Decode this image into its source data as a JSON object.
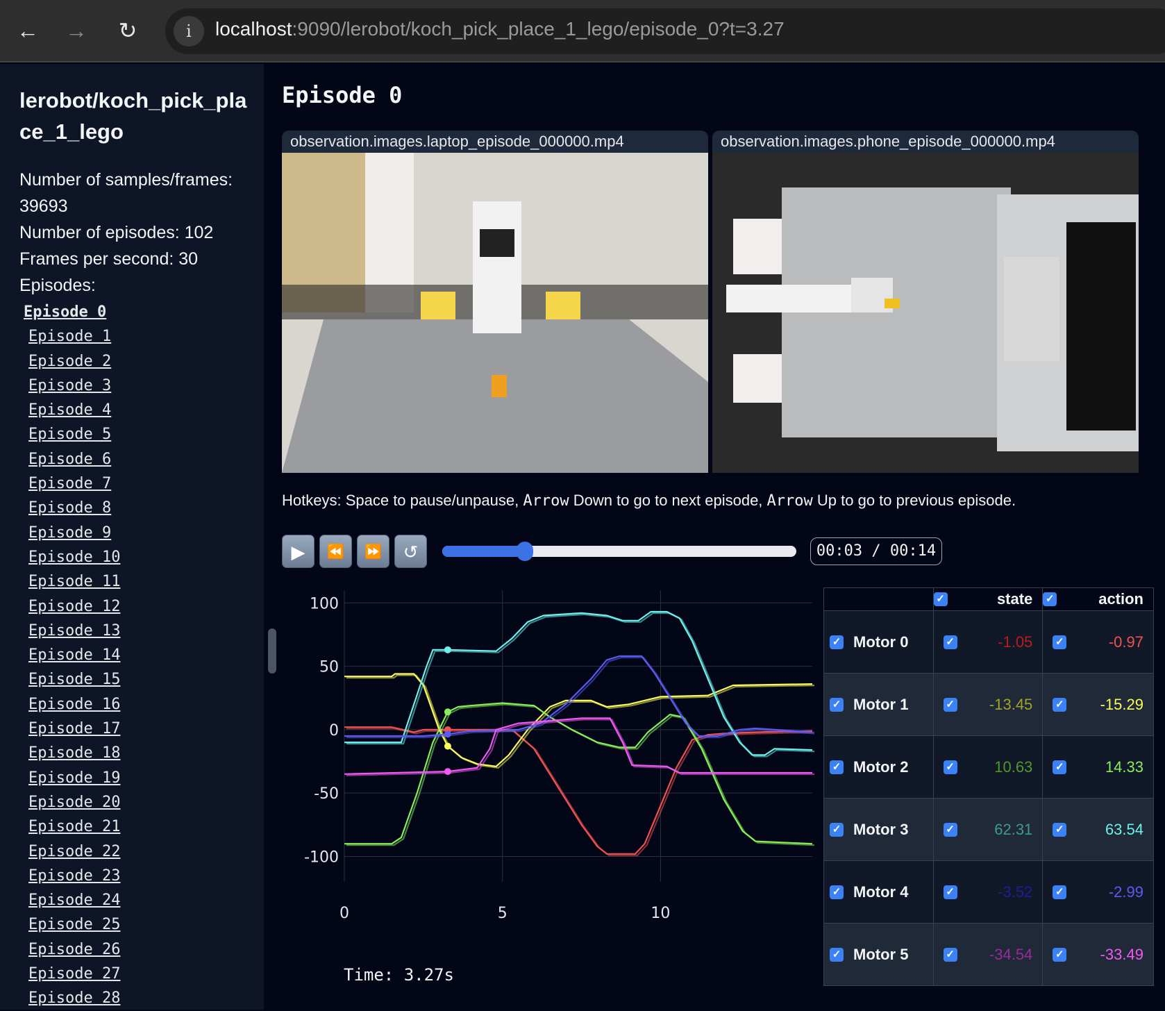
{
  "browser": {
    "url_host": "localhost",
    "url_rest": ":9090/lerobot/koch_pick_place_1_lego/episode_0?t=3.27",
    "back_icon": "←",
    "forward_icon": "→",
    "reload_icon": "↻",
    "info_icon": "i"
  },
  "sidebar": {
    "title": "lerobot/koch_pick_place_1_lego",
    "stats": [
      "Number of samples/frames: 39693",
      "Number of episodes: 102",
      "Frames per second: 30",
      "Episodes:"
    ],
    "episodes": [
      "Episode 0",
      "Episode 1",
      "Episode 2",
      "Episode 3",
      "Episode 4",
      "Episode 5",
      "Episode 6",
      "Episode 7",
      "Episode 8",
      "Episode 9",
      "Episode 10",
      "Episode 11",
      "Episode 12",
      "Episode 13",
      "Episode 14",
      "Episode 15",
      "Episode 16",
      "Episode 17",
      "Episode 18",
      "Episode 19",
      "Episode 20",
      "Episode 21",
      "Episode 22",
      "Episode 23",
      "Episode 24",
      "Episode 25",
      "Episode 26",
      "Episode 27",
      "Episode 28"
    ]
  },
  "main": {
    "title": "Episode 0",
    "videos": [
      "observation.images.laptop_episode_000000.mp4",
      "observation.images.phone_episode_000000.mp4"
    ],
    "hotkeys": {
      "a": "Hotkeys: Space to pause/unpause, ",
      "k1": "Arrow",
      "b": " Down to go to next episode, ",
      "k2": "Arrow",
      "c": " Up to go to previous episode."
    },
    "controls": {
      "play": "▶",
      "rewind": "⏪",
      "forward": "⏩",
      "loop": "↺",
      "progress_fraction": 0.234,
      "time": "00:03 / 00:14"
    },
    "time_label": "Time: 3.27s"
  },
  "table": {
    "headers": [
      "",
      "state",
      "action"
    ],
    "rows": [
      {
        "name": "Motor 0",
        "state": "-1.05",
        "action": "-0.97",
        "state_color": "#b91c1c",
        "action_color": "#f05252"
      },
      {
        "name": "Motor 1",
        "state": "-13.45",
        "action": "-15.29",
        "state_color": "#a3a32a",
        "action_color": "#fafa5a"
      },
      {
        "name": "Motor 2",
        "state": "10.63",
        "action": "14.33",
        "state_color": "#4d9a2a",
        "action_color": "#86ef5a"
      },
      {
        "name": "Motor 3",
        "state": "62.31",
        "action": "63.54",
        "state_color": "#3f9a94",
        "action_color": "#6ef0ea"
      },
      {
        "name": "Motor 4",
        "state": "-3.52",
        "action": "-2.99",
        "state_color": "#1e1e9a",
        "action_color": "#5b5bf0"
      },
      {
        "name": "Motor 5",
        "state": "-34.54",
        "action": "-33.49",
        "state_color": "#9a2a9a",
        "action_color": "#f05af0"
      }
    ]
  },
  "chart_data": {
    "type": "line",
    "xlim": [
      0,
      14.8
    ],
    "ylim": [
      -120,
      110
    ],
    "xticks": [
      0,
      5,
      10
    ],
    "yticks": [
      100,
      50,
      0,
      -50,
      -100
    ],
    "grid": true,
    "cursor_x": 3.27,
    "series": [
      {
        "name": "Motor 0",
        "color": "#f05252",
        "points": [
          [
            0,
            2
          ],
          [
            1.5,
            2
          ],
          [
            2.2,
            -2
          ],
          [
            2.5,
            0
          ],
          [
            5.3,
            0
          ],
          [
            6,
            -15
          ],
          [
            7,
            -55
          ],
          [
            7.5,
            -75
          ],
          [
            8,
            -92
          ],
          [
            8.3,
            -98
          ],
          [
            9.2,
            -98
          ],
          [
            9.5,
            -90
          ],
          [
            10,
            -60
          ],
          [
            10.5,
            -30
          ],
          [
            11,
            -8
          ],
          [
            11.5,
            -4
          ],
          [
            12,
            -3
          ],
          [
            13,
            -2
          ],
          [
            14.8,
            -1
          ]
        ]
      },
      {
        "name": "Motor 1",
        "color": "#fafa5a",
        "points": [
          [
            0,
            42
          ],
          [
            1.5,
            42
          ],
          [
            1.6,
            44
          ],
          [
            2.2,
            44
          ],
          [
            2.5,
            35
          ],
          [
            3,
            0
          ],
          [
            3.27,
            -13
          ],
          [
            3.7,
            -22
          ],
          [
            4.2,
            -27
          ],
          [
            4.8,
            -29
          ],
          [
            5.2,
            -20
          ],
          [
            5.8,
            0
          ],
          [
            6.5,
            18
          ],
          [
            7,
            23
          ],
          [
            7.8,
            23
          ],
          [
            8.3,
            18
          ],
          [
            9,
            20
          ],
          [
            10,
            26
          ],
          [
            11.5,
            27
          ],
          [
            12.3,
            35
          ],
          [
            14.8,
            36
          ]
        ]
      },
      {
        "name": "Motor 2",
        "color": "#86ef5a",
        "points": [
          [
            0,
            -90
          ],
          [
            1.5,
            -90
          ],
          [
            1.8,
            -85
          ],
          [
            2.3,
            -50
          ],
          [
            2.8,
            -10
          ],
          [
            3.27,
            14
          ],
          [
            3.6,
            18
          ],
          [
            4,
            19
          ],
          [
            5,
            21
          ],
          [
            6,
            19
          ],
          [
            6.5,
            10
          ],
          [
            7.2,
            0
          ],
          [
            8,
            -10
          ],
          [
            8.7,
            -14
          ],
          [
            9.2,
            -14
          ],
          [
            9.6,
            -2
          ],
          [
            10.3,
            12
          ],
          [
            10.7,
            10
          ],
          [
            11.3,
            -15
          ],
          [
            12,
            -55
          ],
          [
            12.6,
            -80
          ],
          [
            13,
            -88
          ],
          [
            14.8,
            -90
          ]
        ]
      },
      {
        "name": "Motor 3",
        "color": "#6ef0ea",
        "points": [
          [
            0,
            -10
          ],
          [
            1.8,
            -10
          ],
          [
            2.2,
            20
          ],
          [
            2.6,
            50
          ],
          [
            2.8,
            63
          ],
          [
            3.27,
            63
          ],
          [
            4.8,
            62
          ],
          [
            5.3,
            72
          ],
          [
            5.8,
            85
          ],
          [
            6.3,
            90
          ],
          [
            7.5,
            92
          ],
          [
            8.3,
            90
          ],
          [
            8.8,
            86
          ],
          [
            9.3,
            86
          ],
          [
            9.7,
            93
          ],
          [
            10.2,
            93
          ],
          [
            10.6,
            88
          ],
          [
            11,
            70
          ],
          [
            11.5,
            40
          ],
          [
            12,
            10
          ],
          [
            12.5,
            -10
          ],
          [
            12.9,
            -20
          ],
          [
            13.3,
            -20
          ],
          [
            13.6,
            -15
          ],
          [
            14.8,
            -16
          ]
        ]
      },
      {
        "name": "Motor 4",
        "color": "#5b5bf0",
        "points": [
          [
            0,
            -5
          ],
          [
            2.5,
            -5
          ],
          [
            3.27,
            -3.5
          ],
          [
            4,
            -1
          ],
          [
            5.5,
            0
          ],
          [
            6.2,
            5
          ],
          [
            7,
            20
          ],
          [
            7.8,
            40
          ],
          [
            8.3,
            55
          ],
          [
            8.7,
            58
          ],
          [
            9.4,
            58
          ],
          [
            9.8,
            45
          ],
          [
            10.3,
            25
          ],
          [
            10.8,
            5
          ],
          [
            11.2,
            -5
          ],
          [
            11.8,
            -5
          ],
          [
            12.5,
            0
          ],
          [
            13,
            1
          ],
          [
            14.8,
            -2
          ]
        ]
      },
      {
        "name": "Motor 5",
        "color": "#f05af0",
        "points": [
          [
            0,
            -35
          ],
          [
            3.27,
            -33
          ],
          [
            4.2,
            -30
          ],
          [
            4.6,
            -15
          ],
          [
            4.8,
            0
          ],
          [
            5.5,
            5
          ],
          [
            6.5,
            7
          ],
          [
            7.5,
            9
          ],
          [
            8.4,
            9
          ],
          [
            8.8,
            -10
          ],
          [
            9.1,
            -28
          ],
          [
            10.2,
            -29
          ],
          [
            10.6,
            -34
          ],
          [
            14.8,
            -34
          ]
        ]
      }
    ]
  }
}
